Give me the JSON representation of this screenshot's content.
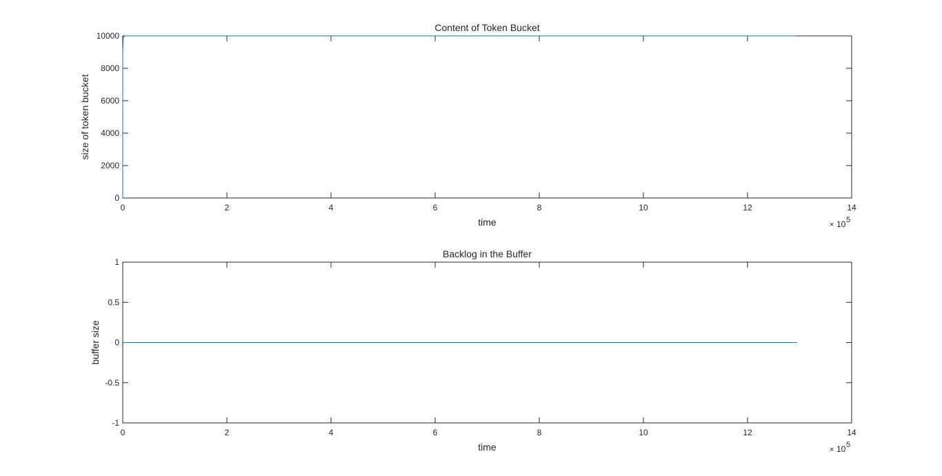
{
  "colors": {
    "series": "#0072BD",
    "axis": "#262626",
    "background": "#ffffff"
  },
  "chart_data": [
    {
      "type": "line",
      "title": "Content of Token Bucket",
      "xlabel": "time",
      "ylabel": "size of token bucket",
      "x_exponent_label": "10",
      "x_exponent_power": "5",
      "xlim": [
        0,
        1400000
      ],
      "ylim": [
        0,
        10000
      ],
      "xticks": [
        0,
        200000,
        400000,
        600000,
        800000,
        1000000,
        1200000,
        1400000
      ],
      "xtick_labels": [
        "0",
        "2",
        "4",
        "6",
        "8",
        "10",
        "12",
        "14"
      ],
      "yticks": [
        0,
        2000,
        4000,
        6000,
        8000,
        10000
      ],
      "ytick_labels": [
        "0",
        "2000",
        "4000",
        "6000",
        "8000",
        "10000"
      ],
      "grid": false,
      "series": [
        {
          "x": [
            0,
            0,
            1000,
            3500,
            1295000
          ],
          "y": [
            0,
            9000,
            9900,
            10000,
            10000
          ]
        }
      ]
    },
    {
      "type": "line",
      "title": "Backlog in the Buffer",
      "xlabel": "time",
      "ylabel": "buffer size",
      "x_exponent_label": "10",
      "x_exponent_power": "5",
      "xlim": [
        0,
        1400000
      ],
      "ylim": [
        -1,
        1
      ],
      "xticks": [
        0,
        200000,
        400000,
        600000,
        800000,
        1000000,
        1200000,
        1400000
      ],
      "xtick_labels": [
        "0",
        "2",
        "4",
        "6",
        "8",
        "10",
        "12",
        "14"
      ],
      "yticks": [
        -1,
        -0.5,
        0,
        0.5,
        1
      ],
      "ytick_labels": [
        "-1",
        "-0.5",
        "0",
        "0.5",
        "1"
      ],
      "grid": false,
      "series": [
        {
          "x": [
            0,
            1295000
          ],
          "y": [
            0,
            0
          ]
        }
      ]
    }
  ]
}
